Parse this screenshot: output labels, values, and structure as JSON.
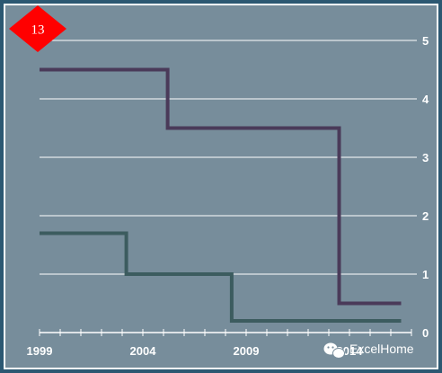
{
  "badge": {
    "number": "13",
    "color": "#ff0000"
  },
  "watermark": {
    "icon": "wechat-icon",
    "text": "ExcelHome"
  },
  "colors": {
    "background": "#2c5872",
    "plot_area": "#778d9b",
    "frame": "#ffffff",
    "grid": "#ffffff"
  },
  "chart_data": {
    "type": "line",
    "step": true,
    "title": "",
    "xlabel": "",
    "ylabel": "",
    "xlim": [
      1999,
      2017
    ],
    "ylim": [
      0,
      5
    ],
    "x_ticks": [
      1999,
      2004,
      2009,
      2014
    ],
    "y_ticks": [
      0,
      1,
      2,
      3,
      4,
      5
    ],
    "y_axis_position": "right",
    "grid": true,
    "series": [
      {
        "color": "#4a3a59",
        "points": [
          [
            1999,
            4.5
          ],
          [
            2005.2,
            4.5
          ],
          [
            2005.2,
            3.5
          ],
          [
            2013.5,
            3.5
          ],
          [
            2013.5,
            0.5
          ],
          [
            2016.5,
            0.5
          ]
        ]
      },
      {
        "color": "#3c5c5f",
        "points": [
          [
            1999,
            1.7
          ],
          [
            2003.2,
            1.7
          ],
          [
            2003.2,
            1.0
          ],
          [
            2008.3,
            1.0
          ],
          [
            2008.3,
            0.2
          ],
          [
            2016.5,
            0.2
          ]
        ]
      }
    ]
  }
}
